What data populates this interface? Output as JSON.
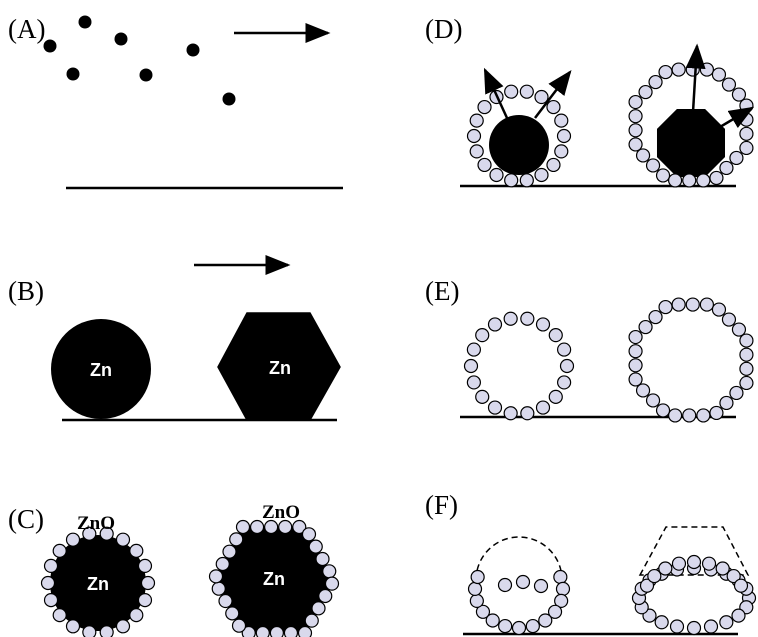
{
  "panels": [
    {
      "label": "(A)"
    },
    {
      "label": "(B)",
      "particles": [
        {
          "core": "Zn"
        },
        {
          "core": "Zn"
        }
      ]
    },
    {
      "label": "(C)",
      "particles": [
        {
          "core": "Zn",
          "shell": "ZnO"
        },
        {
          "core": "Zn",
          "shell": "ZnO"
        }
      ]
    },
    {
      "label": "(D)"
    },
    {
      "label": "(E)"
    },
    {
      "label": "(F)"
    }
  ]
}
